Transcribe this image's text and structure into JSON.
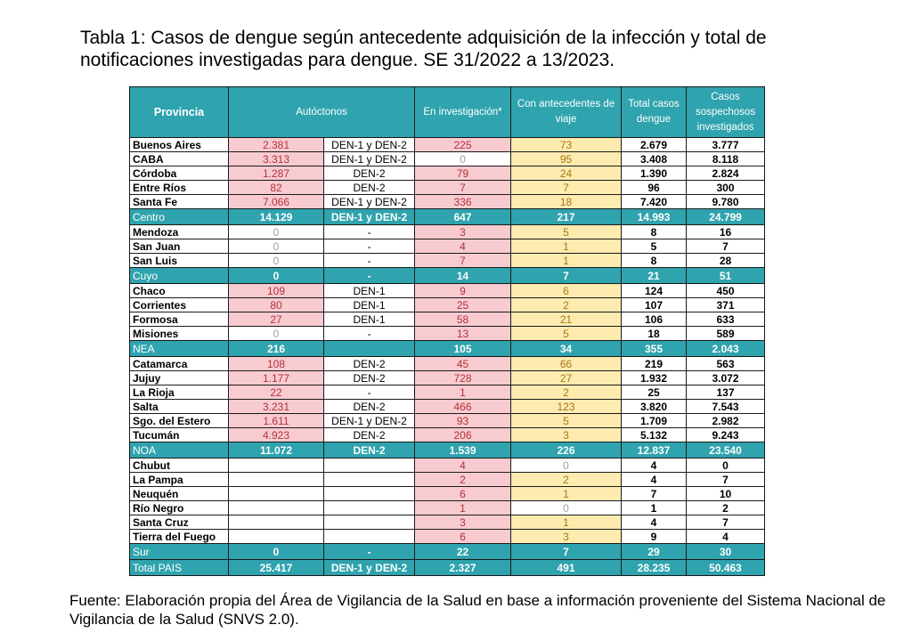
{
  "title": "Tabla 1: Casos de dengue según antecedente adquisición de la infección y total de notificaciones investigadas para dengue. SE 31/2022 a 13/2023.",
  "source": "Fuente: Elaboración propia del Área de Vigilancia de la Salud en base a información proveniente del Sistema Nacional de Vigilancia de la Salud (SNVS 2.0).",
  "table": {
    "headers": {
      "provincia": "Provincia",
      "autoctonos": "Autóctonos",
      "investigacion": "En investigación*",
      "viaje": "Con antecedentes de viaje",
      "total": "Total casos dengue",
      "sospechosos": "Casos sospechosos investigados"
    },
    "rows": [
      {
        "name": "Buenos Aires",
        "aut": "2.381",
        "sero": "DEN-1  y DEN-2",
        "inv": "225",
        "viaje": "73",
        "total": "2.679",
        "sosp": "3.777"
      },
      {
        "name": "CABA",
        "aut": "3.313",
        "sero": "DEN-1  y DEN-2",
        "inv": "0",
        "viaje": "95",
        "total": "3.408",
        "sosp": "8.118"
      },
      {
        "name": "Córdoba",
        "aut": "1.287",
        "sero": "DEN-2",
        "inv": "79",
        "viaje": "24",
        "total": "1.390",
        "sosp": "2.824"
      },
      {
        "name": "Entre Ríos",
        "aut": "82",
        "sero": "DEN-2",
        "inv": "7",
        "viaje": "7",
        "total": "96",
        "sosp": "300"
      },
      {
        "name": "Santa Fe",
        "aut": "7.066",
        "sero": "DEN-1 y DEN-2",
        "inv": "336",
        "viaje": "18",
        "total": "7.420",
        "sosp": "9.780"
      },
      {
        "name": "Centro",
        "aut": "14.129",
        "sero": "DEN-1 y DEN-2",
        "inv": "647",
        "viaje": "217",
        "total": "14.993",
        "sosp": "24.799",
        "region": true
      },
      {
        "name": "Mendoza",
        "aut": "0",
        "sero": "-",
        "inv": "3",
        "viaje": "5",
        "total": "8",
        "sosp": "16"
      },
      {
        "name": "San Juan",
        "aut": "0",
        "sero": "-",
        "inv": "4",
        "viaje": "1",
        "total": "5",
        "sosp": "7"
      },
      {
        "name": "San Luis",
        "aut": "0",
        "sero": "-",
        "inv": "7",
        "viaje": "1",
        "total": "8",
        "sosp": "28"
      },
      {
        "name": "Cuyo",
        "aut": "0",
        "sero": "-",
        "inv": "14",
        "viaje": "7",
        "total": "21",
        "sosp": "51",
        "region": true
      },
      {
        "name": "Chaco",
        "aut": "109",
        "sero": "DEN-1",
        "inv": "9",
        "viaje": "6",
        "total": "124",
        "sosp": "450"
      },
      {
        "name": "Corrientes",
        "aut": "80",
        "sero": "DEN-1",
        "inv": "25",
        "viaje": "2",
        "total": "107",
        "sosp": "371"
      },
      {
        "name": "Formosa",
        "aut": "27",
        "sero": "DEN-1",
        "inv": "58",
        "viaje": "21",
        "total": "106",
        "sosp": "633"
      },
      {
        "name": "Misiones",
        "aut": "0",
        "sero": "-",
        "inv": "13",
        "viaje": "5",
        "total": "18",
        "sosp": "589"
      },
      {
        "name": "NEA",
        "aut": "216",
        "sero": "",
        "inv": "105",
        "viaje": "34",
        "total": "355",
        "sosp": "2.043",
        "region": true
      },
      {
        "name": "Catamarca",
        "aut": "108",
        "sero": "DEN-2",
        "inv": "45",
        "viaje": "66",
        "total": "219",
        "sosp": "563"
      },
      {
        "name": "Jujuy",
        "aut": "1.177",
        "sero": "DEN-2",
        "inv": "728",
        "viaje": "27",
        "total": "1.932",
        "sosp": "3.072"
      },
      {
        "name": "La Rioja",
        "aut": "22",
        "sero": "-",
        "inv": "1",
        "viaje": "2",
        "total": "25",
        "sosp": "137"
      },
      {
        "name": "Salta",
        "aut": "3.231",
        "sero": "DEN-2",
        "inv": "466",
        "viaje": "123",
        "total": "3.820",
        "sosp": "7.543"
      },
      {
        "name": "Sgo. del Estero",
        "aut": "1.611",
        "sero": "DEN-1 y DEN-2",
        "inv": "93",
        "viaje": "5",
        "total": "1.709",
        "sosp": "2.982"
      },
      {
        "name": "Tucumán",
        "aut": "4.923",
        "sero": "DEN-2",
        "inv": "206",
        "viaje": "3",
        "total": "5.132",
        "sosp": "9.243"
      },
      {
        "name": "NOA",
        "aut": "11.072",
        "sero": "DEN-2",
        "inv": "1.539",
        "viaje": "226",
        "total": "12.837",
        "sosp": "23.540",
        "region": true
      },
      {
        "name": "Chubut",
        "aut": "",
        "sero": "",
        "inv": "4",
        "viaje": "0",
        "total": "4",
        "sosp": "0"
      },
      {
        "name": "La Pampa",
        "aut": "",
        "sero": "",
        "inv": "2",
        "viaje": "2",
        "total": "4",
        "sosp": "7"
      },
      {
        "name": "Neuquén",
        "aut": "",
        "sero": "",
        "inv": "6",
        "viaje": "1",
        "total": "7",
        "sosp": "10"
      },
      {
        "name": "Río Negro",
        "aut": "",
        "sero": "",
        "inv": "1",
        "viaje": "0",
        "total": "1",
        "sosp": "2"
      },
      {
        "name": "Santa Cruz",
        "aut": "",
        "sero": "",
        "inv": "3",
        "viaje": "1",
        "total": "4",
        "sosp": "7"
      },
      {
        "name": "Tierra del Fuego",
        "aut": "",
        "sero": "",
        "inv": "6",
        "viaje": "3",
        "total": "9",
        "sosp": "4"
      },
      {
        "name": "Sur",
        "aut": "0",
        "sero": "-",
        "inv": "22",
        "viaje": "7",
        "total": "29",
        "sosp": "30",
        "region": true
      },
      {
        "name": "Total PAIS",
        "aut": "25.417",
        "sero": "DEN-1 y DEN-2",
        "inv": "2.327",
        "viaje": "491",
        "total": "28.235",
        "sosp": "50.463",
        "region": true
      }
    ]
  },
  "colors": {
    "header_bg": "#2fa3ae",
    "autoctonos_bg": "#f8cbd0",
    "investigacion_bg": "#f8cbd0",
    "viaje_bg": "#fdebb0"
  }
}
